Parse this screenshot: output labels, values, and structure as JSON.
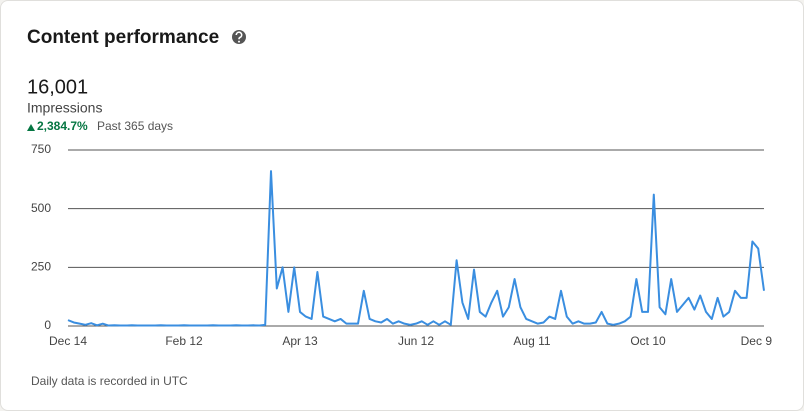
{
  "header": {
    "title": "Content performance",
    "metric_value": "16,001",
    "metric_label": "Impressions",
    "change": "2,384.7%",
    "period": "Past 365 days"
  },
  "footer": "Daily data is recorded in UTC",
  "chart_data": {
    "type": "line",
    "color": "#3a8ee0",
    "grid": true,
    "categories": [
      "Dec 14",
      null,
      null,
      null,
      null,
      null,
      null,
      null,
      null,
      null,
      null,
      null,
      null,
      null,
      null,
      null,
      null,
      null,
      null,
      null,
      "Feb 12",
      null,
      null,
      null,
      null,
      null,
      null,
      null,
      null,
      null,
      null,
      null,
      null,
      null,
      null,
      null,
      null,
      null,
      null,
      null,
      "Apr 13",
      null,
      null,
      null,
      null,
      null,
      null,
      null,
      null,
      null,
      null,
      null,
      null,
      null,
      null,
      null,
      null,
      null,
      null,
      null,
      "Jun 12",
      null,
      null,
      null,
      null,
      null,
      null,
      null,
      null,
      null,
      null,
      null,
      null,
      null,
      null,
      null,
      null,
      null,
      null,
      null,
      "Aug 11",
      null,
      null,
      null,
      null,
      null,
      null,
      null,
      null,
      null,
      null,
      null,
      null,
      null,
      null,
      null,
      null,
      null,
      null,
      null,
      "Oct 10",
      null,
      null,
      null,
      null,
      null,
      null,
      null,
      null,
      null,
      null,
      null,
      null,
      null,
      null,
      null,
      null,
      null,
      null,
      null,
      "Dec 9"
    ],
    "values": [
      25,
      15,
      10,
      5,
      12,
      3,
      10,
      2,
      3,
      2,
      2,
      3,
      2,
      2,
      2,
      2,
      3,
      2,
      2,
      2,
      3,
      2,
      2,
      2,
      2,
      3,
      2,
      2,
      2,
      3,
      2,
      2,
      3,
      2,
      5,
      660,
      160,
      250,
      60,
      250,
      60,
      40,
      30,
      230,
      40,
      30,
      20,
      30,
      10,
      10,
      10,
      150,
      30,
      20,
      15,
      30,
      10,
      20,
      10,
      5,
      10,
      20,
      5,
      20,
      5,
      20,
      5,
      280,
      100,
      30,
      240,
      60,
      40,
      100,
      150,
      40,
      80,
      200,
      80,
      30,
      20,
      10,
      15,
      40,
      30,
      150,
      40,
      10,
      20,
      10,
      10,
      15,
      60,
      10,
      5,
      10,
      20,
      40,
      200,
      60,
      60,
      560,
      80,
      50,
      200,
      60,
      90,
      120,
      70,
      130,
      60,
      30,
      120,
      40,
      60,
      150,
      120,
      120,
      360,
      330,
      150
    ],
    "ylim": [
      0,
      750
    ],
    "yticks": [
      0,
      250,
      500,
      750
    ]
  }
}
